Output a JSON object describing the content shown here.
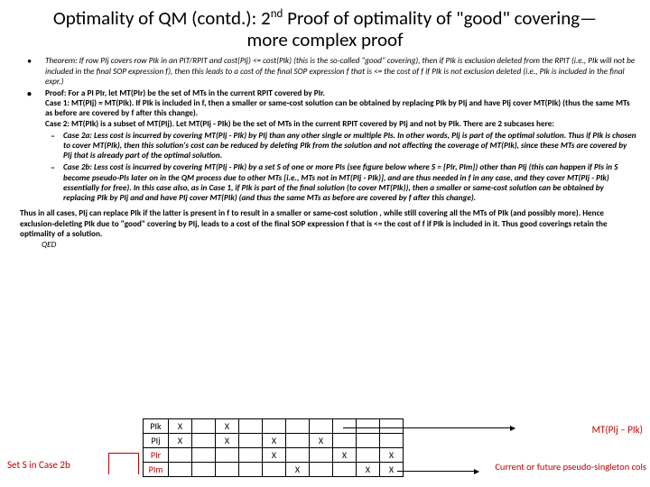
{
  "title_html": "Optimality of QM (contd.): 2<sup>nd</sup> Proof of optimality of \"good\" covering—more complex proof",
  "theorem": "Theorem: If row PIj covers row PIk in an PIT/RPIT and cost(PIj) <= cost(PIk) (this is the so-called \"good\" covering), then if PIk is exclusion deleted from the RPIT (i.e., PIk will not be included in the final SOP expression f), then this leads to a cost of the final SOP expression f that is <= the cost of f if PIk is not exclusion deleted (i.e., PIk is included in the final expr.)",
  "proof_intro": "Proof: For a PI PIr, let MT(PIr) be the set of MTs in the current RPIT covered by PIr.",
  "case1": "Case 1: MT(PIj) = MT(PIk). If PIk is included in f, then a smaller or same-cost solution can be obtained by replacing PIk by PIj and have PIj cover MT(PIk) (thus the same MTs as before are covered by f after this change).",
  "case2": "Case 2: MT(PIk) is a subset of MT(PIj). Let MT(PIj - PIk) be the set of MTs in the current RPIT covered by PIj and not by PIk. There are 2 subcases here:",
  "case2a": "Case 2a: Less cost is incurred by covering MT(PIj - PIk) by PIj than any other single or multiple PIs. In other words, PIj is part of the optimal solution. Thus if PIk is chosen to cover MT(PIk), then this solution's cost can be reduced by deleting PIk from the solution and not affecting the coverage of MT(PIk), since these MTs are covered by PIj that is already part of the optimal solution.",
  "case2b": "Case 2b: Less cost is incurred by covering MT(PIj - PIk) by a set S of one or more PIs (see figure below where S = {PIr, PIm}) other than PIj (this can happen if PIs in S become pseudo-PIs later on in the QM process due to other MTs [i.e., MTs not in MT(PIj - PIk)], and are thus needed in f in any case, and they cover MT(PIj - PIk) essentially for free). In this case also, as in Case 1, if PIk is part of the final solution (to cover MT(PIk)), then a smaller or same-cost solution can be obtained by replacing PIk by PIj and and have PIj cover MT(PIk) (and thus the same MTs as before are covered by f after this change).",
  "conclusion": "Thus in all cases, PIj can replace PIk if the latter is present in f to result in a smaller or same-cost solution , while still covering all the MTs of PIk  (and possibly more). Hence exclusion-deleting PIk due to \"good\" covering by PIj, leads to a cost of the final SOP expression f that is <= the cost of f if PIk is included in it. Thus good coverings retain the optimality of a solution.",
  "qed": "QED",
  "setS_label": "Set S in Case 2b",
  "mt_label": "MT(PIj – PIk)",
  "pseudo_label": "Current or future pseudo-singleton cols",
  "rows": [
    "PIk",
    "PIj",
    "PIr",
    "PIm"
  ],
  "grid": [
    [
      "X",
      "",
      "X",
      "",
      "",
      "",
      "",
      "",
      "",
      ""
    ],
    [
      "X",
      "",
      "X",
      "",
      "X",
      "",
      "X",
      "",
      "",
      ""
    ],
    [
      "",
      "",
      "",
      "",
      "X",
      "",
      "",
      "X",
      "",
      "X"
    ],
    [
      "",
      "",
      "",
      "",
      "",
      "X",
      "",
      "",
      "X",
      "X"
    ]
  ],
  "colors": {
    "red": "#c00000",
    "black": "#000000",
    "bg": "#ffffff"
  },
  "font_sizes": {
    "title": 21,
    "body": 9.2,
    "labels": 11
  }
}
